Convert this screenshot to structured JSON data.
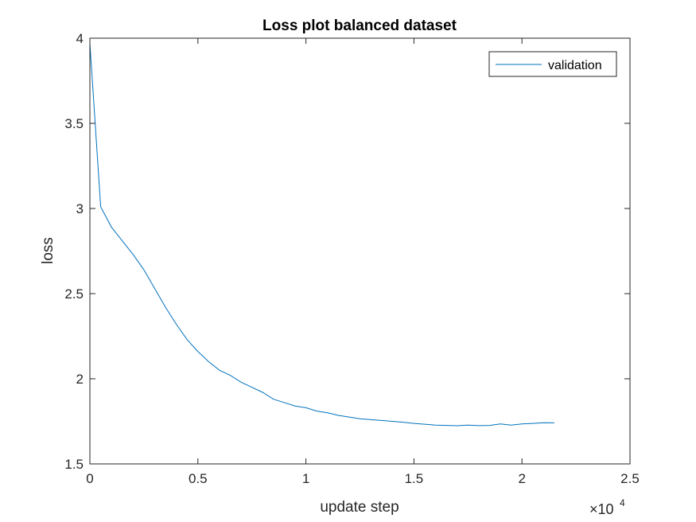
{
  "chart_data": {
    "type": "line",
    "title": "Loss plot balanced dataset",
    "xlabel": "update step",
    "ylabel": "loss",
    "xlim": [
      0,
      25000
    ],
    "ylim": [
      1.5,
      4
    ],
    "x_exponent": {
      "base": "×10",
      "power": "4"
    },
    "xticks": [
      0,
      5000,
      10000,
      15000,
      20000,
      25000
    ],
    "xtick_labels": [
      "0",
      "0.5",
      "1",
      "1.5",
      "2",
      "2.5"
    ],
    "yticks": [
      1.5,
      2,
      2.5,
      3,
      3.5,
      4
    ],
    "ytick_labels": [
      "1.5",
      "2",
      "2.5",
      "3",
      "3.5",
      "4"
    ],
    "grid": false,
    "legend_position": "top-right",
    "series": [
      {
        "name": "validation",
        "color": "#0072BD",
        "x": [
          0,
          500,
          1000,
          1500,
          2000,
          2500,
          3000,
          3500,
          4000,
          4500,
          5000,
          5500,
          6000,
          6500,
          7000,
          7500,
          8000,
          8500,
          9000,
          9500,
          10000,
          10500,
          11000,
          11500,
          12000,
          12500,
          13000,
          13500,
          14000,
          14500,
          15000,
          15500,
          16000,
          16500,
          17000,
          17500,
          18000,
          18500,
          19000,
          19500,
          20000,
          20500,
          21000,
          21500
        ],
        "y": [
          3.97,
          3.01,
          2.89,
          2.81,
          2.73,
          2.64,
          2.53,
          2.42,
          2.32,
          2.23,
          2.16,
          2.1,
          2.05,
          2.02,
          1.98,
          1.95,
          1.92,
          1.88,
          1.86,
          1.84,
          1.83,
          1.81,
          1.8,
          1.785,
          1.775,
          1.765,
          1.76,
          1.755,
          1.75,
          1.745,
          1.738,
          1.733,
          1.728,
          1.726,
          1.724,
          1.728,
          1.725,
          1.726,
          1.735,
          1.728,
          1.735,
          1.738,
          1.742,
          1.741
        ]
      }
    ]
  }
}
